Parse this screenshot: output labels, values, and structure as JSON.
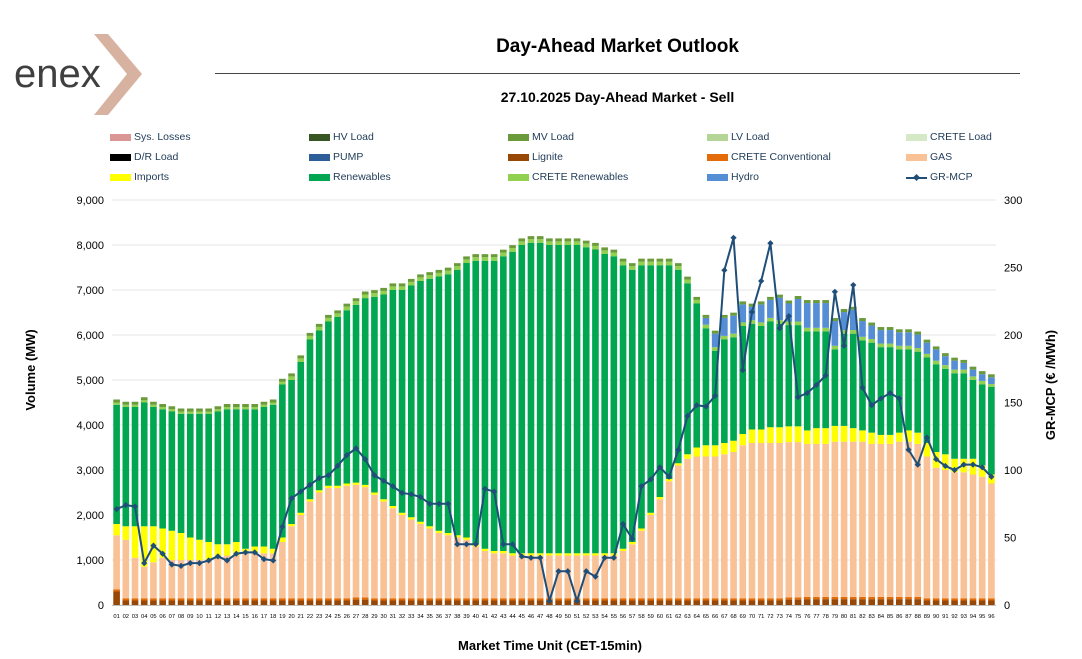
{
  "header": {
    "brand": "enex",
    "title": "Day-Ahead Market Outlook",
    "subtitle": "27.10.2025  Day-Ahead Market - Sell"
  },
  "chart_data": {
    "type": "bar",
    "stacked": true,
    "xlabel": "Market Time Unit (CET-15min)",
    "ylabel": "Volume (MW)",
    "y2label": "GR-MCP (€ /MWh)",
    "ylim": [
      0,
      9000
    ],
    "y2lim": [
      0,
      300
    ],
    "yticks": [
      "0",
      "1,000",
      "2,000",
      "3,000",
      "4,000",
      "5,000",
      "6,000",
      "7,000",
      "8,000",
      "9,000"
    ],
    "y2ticks": [
      "0",
      "50",
      "100",
      "150",
      "200",
      "250",
      "300"
    ],
    "categories": [
      "01",
      "02",
      "03",
      "04",
      "05",
      "06",
      "07",
      "08",
      "09",
      "10",
      "11",
      "12",
      "13",
      "14",
      "15",
      "16",
      "17",
      "18",
      "19",
      "20",
      "21",
      "22",
      "23",
      "24",
      "25",
      "26",
      "27",
      "28",
      "29",
      "30",
      "31",
      "32",
      "33",
      "34",
      "35",
      "36",
      "37",
      "38",
      "39",
      "40",
      "41",
      "42",
      "43",
      "44",
      "45",
      "46",
      "47",
      "48",
      "49",
      "50",
      "51",
      "52",
      "53",
      "54",
      "55",
      "56",
      "57",
      "58",
      "59",
      "60",
      "61",
      "62",
      "63",
      "64",
      "65",
      "66",
      "67",
      "68",
      "69",
      "70",
      "71",
      "72",
      "73",
      "74",
      "75",
      "76",
      "77",
      "78",
      "79",
      "80",
      "81",
      "82",
      "83",
      "84",
      "85",
      "86",
      "87",
      "88",
      "89",
      "90",
      "91",
      "92",
      "93",
      "94",
      "95",
      "96"
    ],
    "legend": [
      {
        "name": "Sys. Losses",
        "color": "#d99694",
        "kind": "bar"
      },
      {
        "name": "HV Load",
        "color": "#375623",
        "kind": "bar"
      },
      {
        "name": "MV Load",
        "color": "#6a9a3a",
        "kind": "bar"
      },
      {
        "name": "LV Load",
        "color": "#b3d596",
        "kind": "bar"
      },
      {
        "name": "CRETE Load",
        "color": "#d6e9c6",
        "kind": "bar"
      },
      {
        "name": "D/R Load",
        "color": "#000000",
        "kind": "bar"
      },
      {
        "name": "PUMP",
        "color": "#2e5e9a",
        "kind": "bar"
      },
      {
        "name": "Lignite",
        "color": "#974806",
        "kind": "bar"
      },
      {
        "name": "CRETE Conventional",
        "color": "#e36c09",
        "kind": "bar"
      },
      {
        "name": "GAS",
        "color": "#f9c196",
        "kind": "bar"
      },
      {
        "name": "Imports",
        "color": "#ffff00",
        "kind": "bar"
      },
      {
        "name": "Renewables",
        "color": "#00a650",
        "kind": "bar"
      },
      {
        "name": "CRETE Renewables",
        "color": "#92d050",
        "kind": "bar"
      },
      {
        "name": "Hydro",
        "color": "#558ed5",
        "kind": "bar"
      },
      {
        "name": "GR-MCP",
        "color": "#1f4e79",
        "kind": "line"
      }
    ],
    "series": [
      {
        "name": "Lignite",
        "color": "#974806",
        "values": [
          300,
          100,
          100,
          100,
          100,
          100,
          100,
          100,
          100,
          100,
          100,
          100,
          100,
          100,
          100,
          100,
          100,
          100,
          100,
          100,
          100,
          100,
          100,
          100,
          100,
          100,
          120,
          120,
          100,
          100,
          100,
          100,
          100,
          100,
          100,
          100,
          100,
          100,
          100,
          100,
          100,
          100,
          100,
          100,
          100,
          100,
          100,
          100,
          100,
          100,
          100,
          100,
          100,
          100,
          100,
          100,
          100,
          100,
          100,
          100,
          100,
          100,
          100,
          100,
          100,
          100,
          100,
          100,
          100,
          100,
          100,
          100,
          100,
          120,
          120,
          130,
          130,
          130,
          130,
          130,
          130,
          130,
          130,
          130,
          130,
          130,
          130,
          130,
          100,
          100,
          100,
          100,
          100,
          100,
          100,
          100
        ]
      },
      {
        "name": "CRETE Conventional",
        "color": "#e36c09",
        "values": [
          50,
          50,
          50,
          50,
          50,
          50,
          50,
          50,
          50,
          50,
          50,
          50,
          50,
          50,
          50,
          50,
          50,
          50,
          50,
          50,
          50,
          50,
          50,
          50,
          50,
          50,
          50,
          50,
          50,
          50,
          50,
          50,
          50,
          50,
          50,
          50,
          50,
          50,
          50,
          50,
          50,
          50,
          50,
          50,
          50,
          50,
          50,
          50,
          50,
          50,
          50,
          50,
          50,
          50,
          50,
          50,
          50,
          50,
          50,
          50,
          50,
          50,
          50,
          50,
          50,
          50,
          50,
          50,
          50,
          50,
          50,
          50,
          50,
          50,
          50,
          50,
          50,
          50,
          50,
          50,
          50,
          50,
          50,
          50,
          50,
          50,
          50,
          50,
          50,
          50,
          50,
          50,
          50,
          50,
          50,
          50
        ]
      },
      {
        "name": "GAS",
        "color": "#f9c196",
        "values": [
          1200,
          1300,
          900,
          700,
          800,
          900,
          850,
          850,
          850,
          850,
          850,
          900,
          950,
          950,
          1000,
          1000,
          1000,
          1000,
          1250,
          1600,
          1850,
          2150,
          2350,
          2450,
          2450,
          2500,
          2500,
          2450,
          2300,
          2150,
          2000,
          1850,
          1750,
          1650,
          1550,
          1450,
          1400,
          1350,
          1300,
          1150,
          1050,
          1000,
          1000,
          950,
          950,
          950,
          950,
          950,
          950,
          950,
          950,
          950,
          950,
          950,
          950,
          1050,
          1200,
          1500,
          1850,
          2200,
          2600,
          2950,
          3100,
          3150,
          3150,
          3150,
          3200,
          3250,
          3400,
          3450,
          3450,
          3450,
          3450,
          3450,
          3450,
          3400,
          3400,
          3400,
          3450,
          3450,
          3450,
          3450,
          3400,
          3400,
          3400,
          3450,
          3450,
          3400,
          3150,
          2900,
          2850,
          2800,
          2800,
          2750,
          2700,
          2550
        ]
      },
      {
        "name": "Imports",
        "color": "#ffff00",
        "values": [
          250,
          300,
          700,
          900,
          800,
          650,
          650,
          600,
          500,
          450,
          400,
          300,
          250,
          300,
          100,
          150,
          150,
          100,
          100,
          50,
          50,
          50,
          50,
          50,
          50,
          50,
          50,
          50,
          50,
          50,
          50,
          50,
          50,
          50,
          50,
          50,
          50,
          50,
          50,
          50,
          50,
          50,
          50,
          50,
          50,
          50,
          50,
          50,
          50,
          50,
          50,
          50,
          50,
          50,
          50,
          50,
          50,
          50,
          50,
          50,
          50,
          50,
          100,
          200,
          250,
          250,
          250,
          250,
          250,
          300,
          300,
          350,
          350,
          350,
          350,
          300,
          350,
          350,
          350,
          350,
          300,
          250,
          250,
          200,
          200,
          200,
          250,
          250,
          300,
          350,
          350,
          300,
          300,
          350,
          250,
          200
        ]
      },
      {
        "name": "Renewables",
        "color": "#00a650",
        "values": [
          2650,
          2650,
          2650,
          2750,
          2650,
          2650,
          2650,
          2650,
          2750,
          2800,
          2850,
          2950,
          3000,
          2950,
          3100,
          3050,
          3100,
          3200,
          3400,
          3200,
          3350,
          3550,
          3550,
          3650,
          3750,
          3850,
          3950,
          4150,
          4350,
          4550,
          4800,
          4950,
          5150,
          5350,
          5500,
          5650,
          5750,
          5900,
          6100,
          6300,
          6400,
          6450,
          6550,
          6700,
          6850,
          6900,
          6900,
          6850,
          6850,
          6850,
          6850,
          6800,
          6750,
          6650,
          6600,
          6300,
          6050,
          5850,
          5500,
          5150,
          4750,
          4300,
          3800,
          3200,
          2600,
          2100,
          2300,
          2300,
          2400,
          2350,
          2300,
          2350,
          2300,
          2250,
          2250,
          2200,
          2150,
          2150,
          1700,
          2050,
          2100,
          2000,
          2000,
          1950,
          1950,
          1850,
          1800,
          1800,
          1900,
          1950,
          1900,
          1900,
          1900,
          1750,
          1800,
          1950
        ]
      },
      {
        "name": "CRETE Renewables",
        "color": "#92d050",
        "values": [
          50,
          50,
          50,
          50,
          50,
          50,
          50,
          50,
          50,
          50,
          50,
          50,
          50,
          50,
          50,
          50,
          50,
          50,
          60,
          80,
          80,
          80,
          80,
          80,
          80,
          80,
          80,
          80,
          80,
          80,
          80,
          80,
          80,
          80,
          80,
          80,
          80,
          80,
          80,
          80,
          80,
          80,
          80,
          80,
          80,
          80,
          80,
          80,
          80,
          80,
          80,
          80,
          80,
          80,
          80,
          80,
          80,
          80,
          80,
          80,
          80,
          80,
          80,
          80,
          80,
          80,
          80,
          80,
          80,
          80,
          80,
          80,
          80,
          80,
          80,
          80,
          80,
          80,
          80,
          80,
          80,
          80,
          80,
          80,
          80,
          80,
          80,
          80,
          80,
          80,
          80,
          80,
          80,
          80,
          80,
          60
        ]
      },
      {
        "name": "Hydro",
        "color": "#558ed5",
        "values": [
          0,
          0,
          0,
          0,
          0,
          0,
          0,
          0,
          0,
          0,
          0,
          0,
          0,
          0,
          0,
          0,
          0,
          0,
          0,
          0,
          0,
          0,
          0,
          0,
          0,
          0,
          0,
          0,
          0,
          0,
          0,
          0,
          0,
          0,
          0,
          0,
          0,
          0,
          0,
          0,
          0,
          0,
          0,
          0,
          0,
          0,
          0,
          0,
          0,
          0,
          0,
          0,
          0,
          0,
          0,
          0,
          0,
          0,
          0,
          0,
          0,
          0,
          0,
          0,
          150,
          300,
          400,
          400,
          400,
          300,
          400,
          400,
          500,
          400,
          500,
          550,
          550,
          550,
          550,
          400,
          450,
          350,
          300,
          300,
          300,
          300,
          300,
          300,
          250,
          250,
          200,
          200,
          150,
          150,
          150,
          150
        ]
      },
      {
        "name": "GR-MCP",
        "color": "#1f4e79",
        "kind": "line",
        "values": [
          71,
          74,
          73,
          31,
          44,
          38,
          30,
          29,
          31,
          31,
          33,
          36,
          33,
          38,
          39,
          39,
          34,
          33,
          58,
          79,
          84,
          89,
          94,
          96,
          103,
          111,
          116,
          108,
          96,
          92,
          88,
          83,
          82,
          80,
          75,
          75,
          75,
          45,
          45,
          45,
          86,
          84,
          45,
          45,
          36,
          35,
          35,
          3,
          25,
          25,
          3,
          25,
          21,
          35,
          35,
          60,
          49,
          88,
          93,
          102,
          95,
          115,
          140,
          148,
          147,
          155,
          248,
          272,
          174,
          217,
          240,
          268,
          205,
          214,
          154,
          157,
          163,
          170,
          232,
          192,
          237,
          161,
          148,
          153,
          157,
          153,
          115,
          104,
          124,
          108,
          103,
          100,
          104,
          104,
          102,
          95
        ]
      }
    ]
  }
}
